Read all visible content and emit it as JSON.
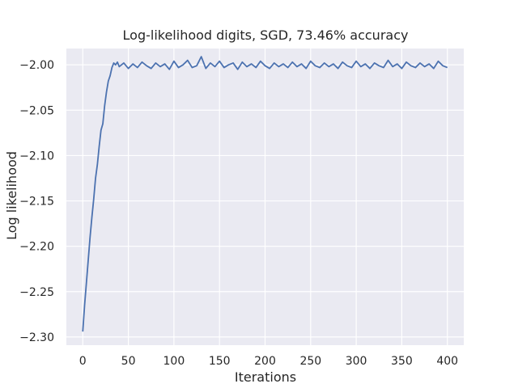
{
  "chart_data": {
    "type": "line",
    "title": "Log-likelihood digits, SGD, 73.46% accuracy",
    "xlabel": "Iterations",
    "ylabel": "Log likelihood",
    "xlim": [
      -18,
      418
    ],
    "ylim": [
      -2.309,
      -1.982
    ],
    "grid": true,
    "x_ticks": [
      0,
      50,
      100,
      150,
      200,
      250,
      300,
      350,
      400
    ],
    "y_ticks": [
      -2.3,
      -2.25,
      -2.2,
      -2.15,
      -2.1,
      -2.05,
      -2.0
    ],
    "x_tick_labels": [
      "0",
      "50",
      "100",
      "150",
      "200",
      "250",
      "300",
      "350",
      "400"
    ],
    "y_tick_labels": [
      "−2.30",
      "−2.25",
      "−2.20",
      "−2.15",
      "−2.10",
      "−2.05",
      "−2.00"
    ],
    "series": [
      {
        "color": "#4c72b0",
        "x": [
          0,
          2,
          4,
          6,
          8,
          10,
          12,
          14,
          16,
          18,
          20,
          22,
          24,
          26,
          28,
          30,
          32,
          34,
          36,
          38,
          40,
          45,
          50,
          55,
          60,
          65,
          70,
          75,
          80,
          85,
          90,
          95,
          100,
          105,
          110,
          115,
          120,
          125,
          130,
          135,
          140,
          145,
          150,
          155,
          160,
          165,
          170,
          175,
          180,
          185,
          190,
          195,
          200,
          205,
          210,
          215,
          220,
          225,
          230,
          235,
          240,
          245,
          250,
          255,
          260,
          265,
          270,
          275,
          280,
          285,
          290,
          295,
          300,
          305,
          310,
          315,
          320,
          325,
          330,
          335,
          340,
          345,
          350,
          355,
          360,
          365,
          370,
          375,
          380,
          385,
          390,
          395,
          400
        ],
        "y": [
          -2.294,
          -2.265,
          -2.24,
          -2.215,
          -2.19,
          -2.168,
          -2.148,
          -2.125,
          -2.11,
          -2.09,
          -2.072,
          -2.065,
          -2.045,
          -2.03,
          -2.018,
          -2.012,
          -2.003,
          -1.998,
          -2.0,
          -1.997,
          -2.002,
          -1.998,
          -2.004,
          -1.999,
          -2.003,
          -1.997,
          -2.001,
          -2.004,
          -1.998,
          -2.002,
          -1.999,
          -2.005,
          -1.996,
          -2.003,
          -2.0,
          -1.995,
          -2.003,
          -2.001,
          -1.991,
          -2.004,
          -1.998,
          -2.002,
          -1.996,
          -2.003,
          -2.0,
          -1.998,
          -2.005,
          -1.997,
          -2.002,
          -1.999,
          -2.003,
          -1.996,
          -2.001,
          -2.004,
          -1.998,
          -2.002,
          -1.999,
          -2.003,
          -1.997,
          -2.002,
          -1.999,
          -2.004,
          -1.996,
          -2.001,
          -2.003,
          -1.998,
          -2.002,
          -1.999,
          -2.004,
          -1.997,
          -2.001,
          -2.003,
          -1.996,
          -2.002,
          -1.999,
          -2.004,
          -1.998,
          -2.001,
          -2.003,
          -1.995,
          -2.002,
          -1.999,
          -2.004,
          -1.997,
          -2.001,
          -2.003,
          -1.998,
          -2.002,
          -1.999,
          -2.004,
          -1.996,
          -2.001,
          -2.003
        ]
      }
    ]
  }
}
